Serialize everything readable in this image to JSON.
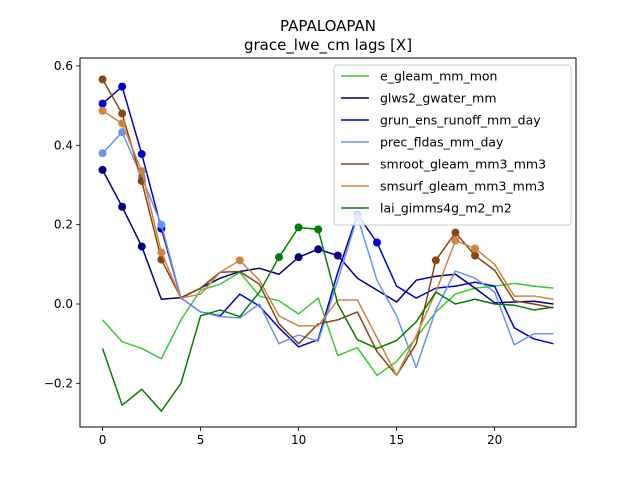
{
  "chart_data": {
    "type": "line",
    "title": "PAPALOAPAN",
    "subtitle": "grace_lwe_cm lags [X]",
    "xlabel": "",
    "ylabel": "",
    "xlim": [
      -1.15,
      24.15
    ],
    "ylim": [
      -0.31,
      0.62
    ],
    "xticks": [
      0,
      5,
      10,
      15,
      20
    ],
    "yticks": [
      -0.2,
      0.0,
      0.2,
      0.4,
      0.6
    ],
    "ytick_labels": [
      "−0.2",
      "0.0",
      "0.2",
      "0.4",
      "0.6"
    ],
    "grid": false,
    "legend_position": "top-right",
    "x": [
      0,
      1,
      2,
      3,
      4,
      5,
      6,
      7,
      8,
      9,
      10,
      11,
      12,
      13,
      14,
      15,
      16,
      17,
      18,
      19,
      20,
      21,
      22,
      23
    ],
    "series": [
      {
        "name": "e_gleam_mm_mon",
        "color": "#32cd32",
        "values": [
          -0.04,
          -0.095,
          -0.112,
          -0.138,
          -0.04,
          0.035,
          0.05,
          0.08,
          0.02,
          0.008,
          -0.025,
          0.015,
          -0.13,
          -0.11,
          -0.18,
          -0.145,
          -0.085,
          -0.02,
          0.025,
          0.04,
          0.045,
          0.052,
          0.045,
          0.04
        ],
        "markers": []
      },
      {
        "name": "glws2_gwater_mm",
        "color": "#000080",
        "values": [
          0.338,
          0.245,
          0.145,
          0.012,
          0.016,
          0.04,
          0.065,
          0.082,
          0.09,
          0.075,
          0.118,
          0.138,
          0.122,
          0.065,
          0.035,
          0.005,
          0.06,
          0.07,
          0.075,
          0.04,
          0.003,
          0.005,
          0.007,
          0.0
        ],
        "markers": [
          0,
          1,
          2,
          10,
          11,
          12
        ]
      },
      {
        "name": "grun_ens_runoff_mm_day",
        "color": "#0000cd",
        "values": [
          0.505,
          0.548,
          0.378,
          0.19,
          0.015,
          -0.02,
          -0.03,
          0.025,
          -0.005,
          -0.06,
          -0.108,
          -0.09,
          0.08,
          0.225,
          0.155,
          0.045,
          0.015,
          0.04,
          0.045,
          0.055,
          0.045,
          -0.06,
          -0.088,
          -0.1
        ],
        "markers": [
          0,
          1,
          2,
          3,
          13,
          14
        ]
      },
      {
        "name": "prec_fldas_mm_day",
        "color": "#6495ed",
        "values": [
          0.38,
          0.433,
          0.32,
          0.2,
          0.015,
          -0.02,
          -0.032,
          -0.035,
          0.0,
          -0.1,
          -0.078,
          -0.094,
          0.06,
          0.22,
          0.06,
          -0.03,
          -0.16,
          -0.015,
          0.083,
          0.065,
          0.03,
          -0.103,
          -0.075,
          -0.075
        ],
        "markers": [
          0,
          1,
          2,
          3,
          13
        ]
      },
      {
        "name": "smroot_gleam_mm3_mm3",
        "color": "#8b4513",
        "values": [
          0.566,
          0.48,
          0.31,
          0.112,
          0.015,
          0.04,
          0.08,
          0.082,
          0.05,
          -0.05,
          -0.1,
          -0.05,
          -0.04,
          -0.02,
          -0.12,
          -0.18,
          -0.1,
          0.11,
          0.18,
          0.122,
          0.085,
          0.008,
          0.0,
          -0.01
        ],
        "markers": [
          0,
          1,
          2,
          3,
          17,
          18,
          19
        ]
      },
      {
        "name": "smsurf_gleam_mm3_mm3",
        "color": "#cd853f",
        "values": [
          0.487,
          0.455,
          0.335,
          0.13,
          0.015,
          0.025,
          0.08,
          0.11,
          0.06,
          -0.03,
          -0.055,
          -0.055,
          0.01,
          0.01,
          -0.085,
          -0.18,
          -0.08,
          0.03,
          0.16,
          0.14,
          0.1,
          0.02,
          0.02,
          0.012
        ],
        "markers": [
          0,
          1,
          2,
          3,
          7,
          18,
          19
        ]
      },
      {
        "name": "lai_gimms4g_m2_m2",
        "color": "#008000",
        "values": [
          -0.112,
          -0.255,
          -0.215,
          -0.27,
          -0.2,
          -0.03,
          -0.015,
          -0.032,
          0.03,
          0.118,
          0.193,
          0.188,
          0.0,
          -0.09,
          -0.112,
          -0.092,
          -0.045,
          0.03,
          0.0,
          0.012,
          0.0,
          -0.003,
          -0.015,
          -0.008
        ],
        "markers": [
          9,
          10,
          11
        ]
      }
    ]
  }
}
